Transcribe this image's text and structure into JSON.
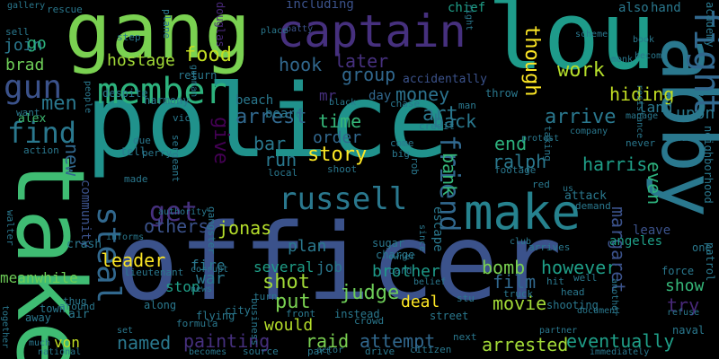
{
  "words": [
    {
      "text": "police",
      "color": "#20928c"
    },
    {
      "text": "officer",
      "color": "#3b528b"
    },
    {
      "text": "take",
      "color": "#3fbc73"
    },
    {
      "text": "gang",
      "color": "#7ad151"
    },
    {
      "text": "lou",
      "color": "#1e9b8a"
    },
    {
      "text": "captain",
      "color": "#46307e"
    },
    {
      "text": "abby",
      "color": "#2a788e"
    },
    {
      "text": "fight",
      "color": "#31688e"
    },
    {
      "text": "make",
      "color": "#26828e"
    },
    {
      "text": "member",
      "color": "#2db27d"
    },
    {
      "text": "gun",
      "color": "#3b528b"
    },
    {
      "text": "russell",
      "color": "#2a788e"
    },
    {
      "text": "steal",
      "color": "#31688e"
    },
    {
      "text": "get",
      "color": "#46307e"
    },
    {
      "text": "find",
      "color": "#2a788e"
    },
    {
      "text": "friend",
      "color": "#31688e"
    },
    {
      "text": "men",
      "color": "#2a788e"
    },
    {
      "text": "story",
      "color": "#fde725"
    },
    {
      "text": "though",
      "color": "#fde725"
    },
    {
      "text": "work",
      "color": "#b5de2b"
    },
    {
      "text": "food",
      "color": "#c2df23"
    },
    {
      "text": "hook",
      "color": "#31688e"
    },
    {
      "text": "arrest",
      "color": "#31688e"
    },
    {
      "text": "later",
      "color": "#46307e"
    },
    {
      "text": "group",
      "color": "#31688e"
    },
    {
      "text": "money",
      "color": "#2c728e"
    },
    {
      "text": "back",
      "color": "#2a788e"
    },
    {
      "text": "arrive",
      "color": "#2a788e"
    },
    {
      "text": "hiding",
      "color": "#c2df23"
    },
    {
      "text": "time",
      "color": "#35b779"
    },
    {
      "text": "art",
      "color": "#2a788e"
    },
    {
      "text": "order",
      "color": "#31688e"
    },
    {
      "text": "bar",
      "color": "#2a788e"
    },
    {
      "text": "run",
      "color": "#2a788e"
    },
    {
      "text": "end",
      "color": "#2db27d"
    },
    {
      "text": "ralph",
      "color": "#2a788e"
    },
    {
      "text": "harris",
      "color": "#1f9f88"
    },
    {
      "text": "bank",
      "color": "#35b779"
    },
    {
      "text": "give",
      "color": "#440154"
    },
    {
      "text": "new",
      "color": "#31688e"
    },
    {
      "text": "others",
      "color": "#3b528b"
    },
    {
      "text": "jonas",
      "color": "#b5de2b"
    },
    {
      "text": "leader",
      "color": "#fde725"
    },
    {
      "text": "fire",
      "color": "#2a788e"
    },
    {
      "text": "several",
      "color": "#1f9f88"
    },
    {
      "text": "job",
      "color": "#2a788e"
    },
    {
      "text": "brother",
      "color": "#1e9b8a"
    },
    {
      "text": "bomb",
      "color": "#7ad151"
    },
    {
      "text": "however",
      "color": "#1f9f88"
    },
    {
      "text": "even",
      "color": "#2db27d"
    },
    {
      "text": "margaret",
      "color": "#3b528b"
    },
    {
      "text": "film",
      "color": "#31688e"
    },
    {
      "text": "movie",
      "color": "#a2da37"
    },
    {
      "text": "try",
      "color": "#482878"
    },
    {
      "text": "show",
      "color": "#35b779"
    },
    {
      "text": "shot",
      "color": "#a2da37"
    },
    {
      "text": "put",
      "color": "#7ad151"
    },
    {
      "text": "judge",
      "color": "#6ece58"
    },
    {
      "text": "deal",
      "color": "#fde725"
    },
    {
      "text": "stop",
      "color": "#1f9f88"
    },
    {
      "text": "war",
      "color": "#2a788e"
    },
    {
      "text": "painting",
      "color": "#46307e"
    },
    {
      "text": "named",
      "color": "#2a788e"
    },
    {
      "text": "would",
      "color": "#b5de2b"
    },
    {
      "text": "raid",
      "color": "#7ad151"
    },
    {
      "text": "attempt",
      "color": "#31688e"
    },
    {
      "text": "arrested",
      "color": "#a2da37"
    },
    {
      "text": "eventually",
      "color": "#1f9f88"
    },
    {
      "text": "plan",
      "color": "#2a788e"
    },
    {
      "text": "meanwhile",
      "color": "#6ece58"
    },
    {
      "text": "von",
      "color": "#c2df23"
    },
    {
      "text": "join",
      "color": "#2a788e"
    },
    {
      "text": "go",
      "color": "#2db27d"
    },
    {
      "text": "brad",
      "color": "#6ece58"
    },
    {
      "text": "hostage",
      "color": "#a2da37"
    },
    {
      "text": "including",
      "color": "#3b528b"
    },
    {
      "text": "chief",
      "color": "#1f9f88"
    },
    {
      "text": "also",
      "color": "#2a788e"
    },
    {
      "text": "hand",
      "color": "#2a788e"
    },
    {
      "text": "upon",
      "color": "#2a788e"
    },
    {
      "text": "land",
      "color": "#2a788e"
    },
    {
      "text": "mr",
      "color": "#46307e"
    },
    {
      "text": "beard",
      "color": "#2a788e"
    },
    {
      "text": "beach",
      "color": "#2a788e"
    },
    {
      "text": "day",
      "color": "#31688e"
    },
    {
      "text": "community",
      "color": "#3b528b"
    },
    {
      "text": "escape",
      "color": "#2a788e"
    },
    {
      "text": "angeles",
      "color": "#1f9f88"
    },
    {
      "text": "leave",
      "color": "#3b528b"
    },
    {
      "text": "alex",
      "color": "#3fbc73"
    },
    {
      "text": "academy",
      "color": "#2a788e"
    },
    {
      "text": "douglas",
      "color": "#482878"
    },
    {
      "text": "rescue",
      "color": "#2a788e"
    },
    {
      "text": "sell",
      "color": "#2a788e"
    },
    {
      "text": "step",
      "color": "#2a788e"
    },
    {
      "text": "plane",
      "color": "#2a788e"
    },
    {
      "text": "gunman",
      "color": "#2a788e"
    },
    {
      "text": "return",
      "color": "#2a788e"
    },
    {
      "text": "despite",
      "color": "#2a788e"
    },
    {
      "text": "gallery",
      "color": "#2a788e"
    },
    {
      "text": "patty",
      "color": "#3b528b"
    },
    {
      "text": "place",
      "color": "#2a788e"
    },
    {
      "text": "right",
      "color": "#2a788e"
    },
    {
      "text": "scheme",
      "color": "#2a788e"
    },
    {
      "text": "book",
      "color": "#2a788e"
    },
    {
      "text": "become",
      "color": "#2a788e"
    },
    {
      "text": "los",
      "color": "#2a788e"
    },
    {
      "text": "monk",
      "color": "#2a788e"
    },
    {
      "text": "resistance",
      "color": "#2a788e"
    },
    {
      "text": "accidentally",
      "color": "#3b528b"
    },
    {
      "text": "throw",
      "color": "#2a788e"
    },
    {
      "text": "man",
      "color": "#2a788e"
    },
    {
      "text": "harmony",
      "color": "#2a788e"
    },
    {
      "text": "vic",
      "color": "#2a788e"
    },
    {
      "text": "black",
      "color": "#2a788e"
    },
    {
      "text": "chase",
      "color": "#2a788e"
    },
    {
      "text": "credit",
      "color": "#2a788e"
    },
    {
      "text": "protest",
      "color": "#2a788e"
    },
    {
      "text": "taking",
      "color": "#2a788e"
    },
    {
      "text": "company",
      "color": "#2a788e"
    },
    {
      "text": "manage",
      "color": "#2a788e"
    },
    {
      "text": "lead",
      "color": "#2a788e"
    },
    {
      "text": "never",
      "color": "#2a788e"
    },
    {
      "text": "neighborhood",
      "color": "#2a788e"
    },
    {
      "text": "patrol",
      "color": "#2a788e"
    },
    {
      "text": "one",
      "color": "#2a788e"
    },
    {
      "text": "want",
      "color": "#2a788e"
    },
    {
      "text": "action",
      "color": "#2a788e"
    },
    {
      "text": "people",
      "color": "#2a788e"
    },
    {
      "text": "due",
      "color": "#2a788e"
    },
    {
      "text": "tell",
      "color": "#2a788e"
    },
    {
      "text": "perry",
      "color": "#2a788e"
    },
    {
      "text": "sergeant",
      "color": "#2a788e"
    },
    {
      "text": "local",
      "color": "#2a788e"
    },
    {
      "text": "shoot",
      "color": "#2a788e"
    },
    {
      "text": "come",
      "color": "#2a788e"
    },
    {
      "text": "big",
      "color": "#2a788e"
    },
    {
      "text": "rob",
      "color": "#2a788e"
    },
    {
      "text": "footage",
      "color": "#2a788e"
    },
    {
      "text": "red",
      "color": "#2a788e"
    },
    {
      "text": "us",
      "color": "#2a788e"
    },
    {
      "text": "attack",
      "color": "#2a788e"
    },
    {
      "text": "demand",
      "color": "#2a788e"
    },
    {
      "text": "walter",
      "color": "#2a788e"
    },
    {
      "text": "crash",
      "color": "#2a788e"
    },
    {
      "text": "informs",
      "color": "#2a788e"
    },
    {
      "text": "made",
      "color": "#2a788e"
    },
    {
      "text": "authority",
      "color": "#2a788e"
    },
    {
      "text": "gangster",
      "color": "#2a788e"
    },
    {
      "text": "lieutenant",
      "color": "#2a788e"
    },
    {
      "text": "corrupt",
      "color": "#2a788e"
    },
    {
      "text": "sugar",
      "color": "#2a788e"
    },
    {
      "text": "charge",
      "color": "#2a788e"
    },
    {
      "text": "since",
      "color": "#2a788e"
    },
    {
      "text": "club",
      "color": "#2a788e"
    },
    {
      "text": "arrives",
      "color": "#2a788e"
    },
    {
      "text": "owner",
      "color": "#2a788e"
    },
    {
      "text": "hit",
      "color": "#2a788e"
    },
    {
      "text": "another",
      "color": "#2a788e"
    },
    {
      "text": "force",
      "color": "#2a788e"
    },
    {
      "text": "news",
      "color": "#2a788e"
    },
    {
      "text": "card",
      "color": "#2a788e"
    },
    {
      "text": "stu",
      "color": "#2a788e"
    },
    {
      "text": "head",
      "color": "#2a788e"
    },
    {
      "text": "thug",
      "color": "#2a788e"
    },
    {
      "text": "flying",
      "color": "#2a788e"
    },
    {
      "text": "turn",
      "color": "#2a788e"
    },
    {
      "text": "belief",
      "color": "#2a788e"
    },
    {
      "text": "truck",
      "color": "#2a788e"
    },
    {
      "text": "well",
      "color": "#2a788e"
    },
    {
      "text": "together",
      "color": "#2a788e"
    },
    {
      "text": "around",
      "color": "#2a788e"
    },
    {
      "text": "along",
      "color": "#2a788e"
    },
    {
      "text": "city",
      "color": "#2a788e"
    },
    {
      "text": "business",
      "color": "#2a788e"
    },
    {
      "text": "front",
      "color": "#2a788e"
    },
    {
      "text": "instead",
      "color": "#2a788e"
    },
    {
      "text": "street",
      "color": "#2a788e"
    },
    {
      "text": "shooting",
      "color": "#2a788e"
    },
    {
      "text": "document",
      "color": "#2a788e"
    },
    {
      "text": "refuse",
      "color": "#2a788e"
    },
    {
      "text": "naval",
      "color": "#2a788e"
    },
    {
      "text": "town",
      "color": "#2a788e"
    },
    {
      "text": "away",
      "color": "#2a788e"
    },
    {
      "text": "air",
      "color": "#2a788e"
    },
    {
      "text": "formula",
      "color": "#2a788e"
    },
    {
      "text": "set",
      "color": "#2a788e"
    },
    {
      "text": "crowd",
      "color": "#2a788e"
    },
    {
      "text": "partner",
      "color": "#2a788e"
    },
    {
      "text": "much",
      "color": "#2a788e"
    },
    {
      "text": "national",
      "color": "#2a788e"
    },
    {
      "text": "becomes",
      "color": "#2a788e"
    },
    {
      "text": "source",
      "color": "#2a788e"
    },
    {
      "text": "actor",
      "color": "#2a788e"
    },
    {
      "text": "drive",
      "color": "#2a788e"
    },
    {
      "text": "citizen",
      "color": "#2a788e"
    },
    {
      "text": "next",
      "color": "#2a788e"
    },
    {
      "text": "part",
      "color": "#2a788e"
    },
    {
      "text": "immediately",
      "color": "#2a788e"
    }
  ]
}
